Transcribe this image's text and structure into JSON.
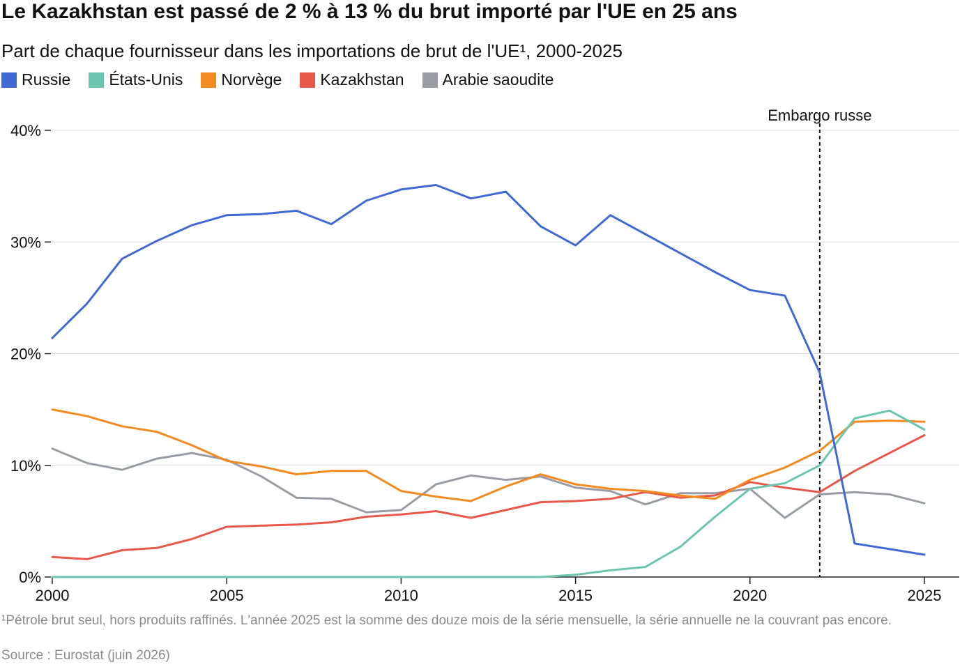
{
  "title": "Le Kazakhstan est passé de 2 % à 13 % du brut importé par l'UE en 25 ans",
  "subtitle": "Part de chaque fournisseur dans les importations de brut de l'UE¹, 2000-2025",
  "footnote": "¹Pétrole brut seul, hors produits raffinés. L'année 2025 est la somme des douze mois de la série mensuelle, la série annuelle ne la couvrant pas encore.",
  "source": "Source : Eurostat (juin 2026)",
  "chart_data": {
    "type": "line",
    "title": "Le Kazakhstan est passé de 2 % à 13 % du brut importé par l'UE en 25 ans",
    "subtitle": "Part de chaque fournisseur dans les importations de brut de l'UE¹, 2000-2025",
    "xlabel": "",
    "ylabel": "",
    "x": [
      2000,
      2001,
      2002,
      2003,
      2004,
      2005,
      2006,
      2007,
      2008,
      2009,
      2010,
      2011,
      2012,
      2013,
      2014,
      2015,
      2016,
      2017,
      2018,
      2019,
      2020,
      2021,
      2022,
      2023,
      2024,
      2025
    ],
    "xlim": [
      2000,
      2026
    ],
    "xticks": [
      2000,
      2005,
      2010,
      2015,
      2020,
      2025
    ],
    "ylim": [
      0,
      40
    ],
    "yticks": [
      0,
      10,
      20,
      30,
      40
    ],
    "ytick_labels": [
      "0%",
      "10%",
      "20%",
      "30%",
      "40%"
    ],
    "grid": true,
    "legend_position": "top-left",
    "annotation": {
      "x": 2022,
      "label": "Embargo russe",
      "style": "dashed vertical line"
    },
    "series": [
      {
        "name": "Russie",
        "color": "#4169d4",
        "values": [
          21.4,
          24.5,
          28.5,
          30.1,
          31.5,
          32.4,
          32.5,
          32.8,
          31.6,
          33.7,
          34.7,
          35.1,
          33.9,
          34.5,
          31.4,
          29.7,
          32.4,
          30.7,
          29.0,
          27.3,
          25.7,
          25.2,
          18.3,
          3.0,
          2.5,
          2.0
        ]
      },
      {
        "name": "États-Unis",
        "color": "#6cc5ad",
        "values": [
          0,
          0,
          0,
          0,
          0,
          0,
          0,
          0,
          0,
          0,
          0,
          0,
          0,
          0,
          0,
          0.2,
          0.6,
          0.9,
          2.7,
          5.4,
          7.9,
          8.4,
          10.0,
          14.2,
          14.9,
          13.2
        ]
      },
      {
        "name": "Norvège",
        "color": "#f18a1f",
        "values": [
          15.0,
          14.4,
          13.5,
          13.0,
          11.8,
          10.4,
          9.9,
          9.2,
          9.5,
          9.5,
          7.7,
          7.2,
          6.8,
          8.1,
          9.2,
          8.3,
          7.9,
          7.7,
          7.3,
          7.0,
          8.7,
          9.8,
          11.3,
          13.9,
          14.0,
          13.9
        ]
      },
      {
        "name": "Kazakhstan",
        "color": "#e8584a",
        "values": [
          1.8,
          1.6,
          2.4,
          2.6,
          3.4,
          4.5,
          4.6,
          4.7,
          4.9,
          5.4,
          5.6,
          5.9,
          5.3,
          6.0,
          6.7,
          6.8,
          7.0,
          7.6,
          7.1,
          7.3,
          8.5,
          8.0,
          7.6,
          9.5,
          11.1,
          12.7
        ]
      },
      {
        "name": "Arabie saoudite",
        "color": "#9a9ca3",
        "values": [
          11.5,
          10.2,
          9.6,
          10.6,
          11.1,
          10.5,
          9.0,
          7.1,
          7.0,
          5.8,
          6.0,
          8.3,
          9.1,
          8.7,
          9.0,
          8.0,
          7.7,
          6.5,
          7.5,
          7.5,
          7.9,
          5.3,
          7.4,
          7.6,
          7.4,
          6.6
        ]
      }
    ]
  }
}
